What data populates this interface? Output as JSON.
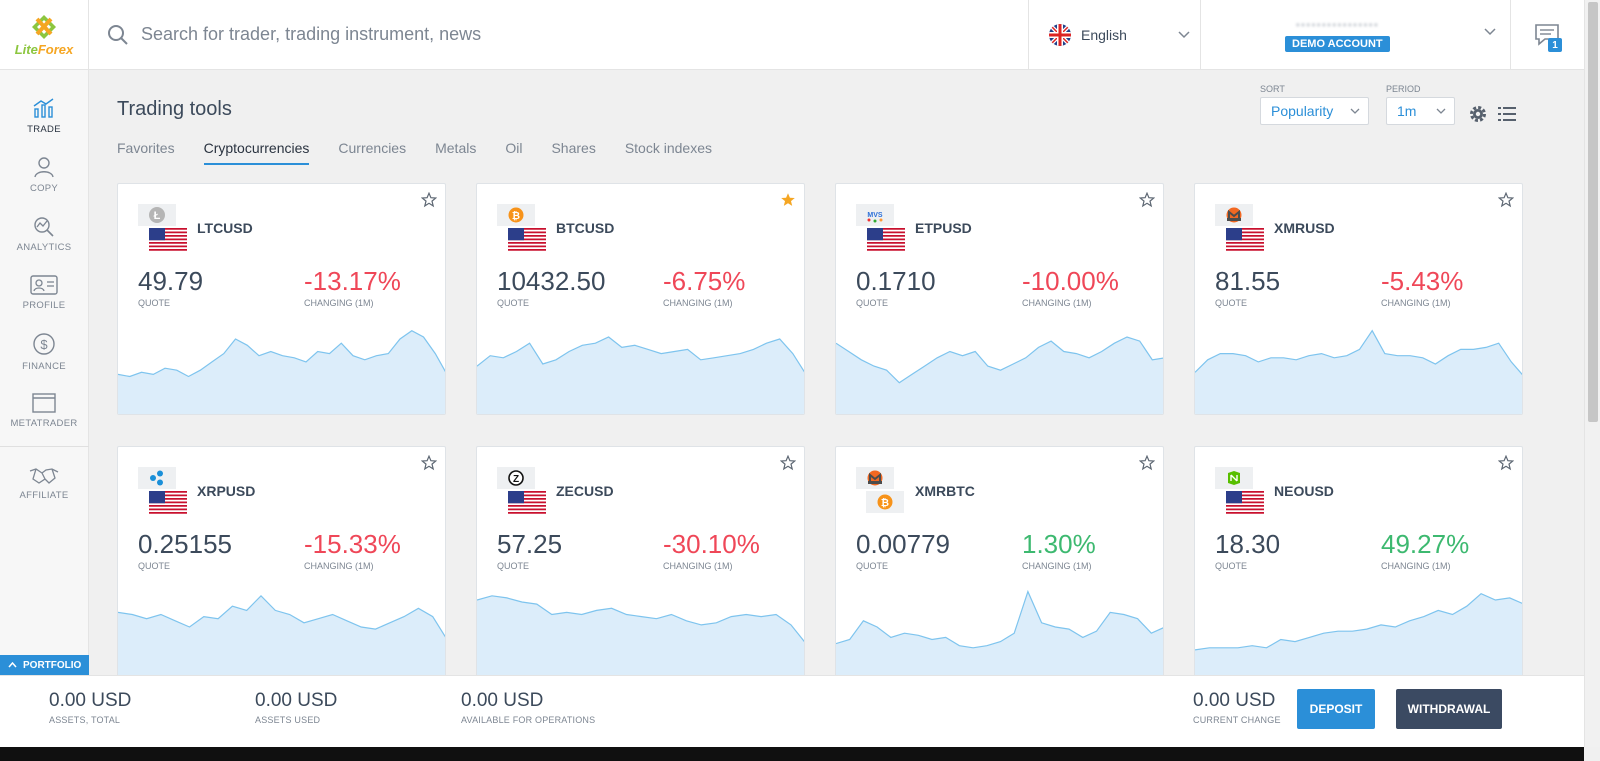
{
  "header": {
    "logo_lite": "Lite",
    "logo_forex": "Forex",
    "search_placeholder": "Search for trader, trading instrument, news",
    "language": "English",
    "account_name": "••••••••••••••••",
    "account_badge": "DEMO ACCOUNT",
    "messages_count": "1"
  },
  "sidebar": {
    "items": [
      {
        "label": "TRADE",
        "icon": "trade-icon"
      },
      {
        "label": "COPY",
        "icon": "copy-icon"
      },
      {
        "label": "ANALYTICS",
        "icon": "analytics-icon"
      },
      {
        "label": "PROFILE",
        "icon": "profile-icon"
      },
      {
        "label": "FINANCE",
        "icon": "finance-icon"
      },
      {
        "label": "METATRADER",
        "icon": "metatrader-icon"
      },
      {
        "label": "AFFILIATE",
        "icon": "affiliate-icon"
      }
    ],
    "portfolio_label": "PORTFOLIO"
  },
  "main": {
    "title": "Trading tools",
    "tabs": [
      "Favorites",
      "Cryptocurrencies",
      "Currencies",
      "Metals",
      "Oil",
      "Shares",
      "Stock indexes"
    ],
    "active_tab": "Cryptocurrencies",
    "sort_label": "SORT",
    "sort_value": "Popularity",
    "period_label": "PERIOD",
    "period_value": "1m"
  },
  "cards": [
    {
      "symbol": "LTCUSD",
      "quote": "49.79",
      "change": "-13.17%",
      "quote_label": "QUOTE",
      "change_label": "CHANGING (1M)",
      "favorite": false,
      "coin": "litecoin-icon",
      "spark": [
        40,
        38,
        42,
        40,
        46,
        44,
        38,
        44,
        52,
        60,
        74,
        68,
        58,
        62,
        58,
        56,
        52,
        62,
        60,
        70,
        58,
        54,
        58,
        60,
        74,
        82,
        76,
        60,
        40
      ]
    },
    {
      "symbol": "BTCUSD",
      "quote": "10432.50",
      "change": "-6.75%",
      "quote_label": "QUOTE",
      "change_label": "CHANGING (1M)",
      "favorite": true,
      "coin": "bitcoin-icon",
      "spark": [
        48,
        58,
        56,
        62,
        70,
        50,
        54,
        62,
        68,
        70,
        76,
        66,
        68,
        64,
        60,
        62,
        64,
        54,
        56,
        58,
        60,
        64,
        70,
        74,
        60,
        40
      ]
    },
    {
      "symbol": "ETPUSD",
      "quote": "0.1710",
      "change": "-10.00%",
      "quote_label": "QUOTE",
      "change_label": "CHANGING (1M)",
      "favorite": false,
      "coin": "metaverse-icon",
      "spark": [
        70,
        62,
        54,
        48,
        44,
        32,
        40,
        48,
        56,
        62,
        58,
        62,
        48,
        44,
        50,
        56,
        66,
        72,
        62,
        60,
        56,
        62,
        70,
        76,
        72,
        54,
        56
      ]
    },
    {
      "symbol": "XMRUSD",
      "quote": "81.55",
      "change": "-5.43%",
      "quote_label": "QUOTE",
      "change_label": "CHANGING (1M)",
      "favorite": false,
      "coin": "monero-icon",
      "spark": [
        42,
        54,
        60,
        60,
        58,
        52,
        56,
        56,
        54,
        58,
        60,
        56,
        58,
        64,
        82,
        60,
        58,
        58,
        56,
        50,
        58,
        64,
        64,
        66,
        70,
        52,
        38
      ]
    },
    {
      "symbol": "XRPUSD",
      "quote": "0.25155",
      "change": "-15.33%",
      "quote_label": "QUOTE",
      "change_label": "CHANGING (1M)",
      "favorite": false,
      "coin": "ripple-icon",
      "spark": [
        64,
        62,
        58,
        62,
        56,
        50,
        60,
        58,
        70,
        66,
        80,
        66,
        62,
        54,
        58,
        62,
        56,
        50,
        48,
        54,
        60,
        68,
        60,
        38
      ]
    },
    {
      "symbol": "ZECUSD",
      "quote": "57.25",
      "change": "-30.10%",
      "quote_label": "QUOTE",
      "change_label": "CHANGING (1M)",
      "favorite": false,
      "coin": "zcash-icon",
      "spark": [
        76,
        80,
        78,
        74,
        72,
        62,
        64,
        62,
        66,
        68,
        62,
        60,
        58,
        62,
        56,
        52,
        54,
        60,
        62,
        60,
        62,
        52,
        34
      ]
    },
    {
      "symbol": "XMRBTC",
      "quote": "0.00779",
      "change": "1.30%",
      "quote_label": "QUOTE",
      "change_label": "CHANGING (1M)",
      "favorite": false,
      "coin": "monero-icon",
      "coin2": "bitcoin-icon",
      "spark": [
        34,
        38,
        56,
        50,
        40,
        44,
        42,
        38,
        40,
        32,
        30,
        32,
        36,
        44,
        84,
        54,
        50,
        48,
        40,
        46,
        64,
        62,
        58,
        44,
        50
      ]
    },
    {
      "symbol": "NEOUSD",
      "quote": "18.30",
      "change": "49.27%",
      "quote_label": "QUOTE",
      "change_label": "CHANGING (1M)",
      "favorite": false,
      "coin": "neo-icon",
      "spark": [
        28,
        30,
        30,
        30,
        32,
        30,
        38,
        36,
        40,
        44,
        46,
        46,
        48,
        52,
        50,
        56,
        60,
        66,
        62,
        70,
        82,
        76,
        78,
        72
      ]
    }
  ],
  "footer": {
    "assets_total": "0.00 USD",
    "assets_total_label": "ASSETS, TOTAL",
    "assets_used": "0.00 USD",
    "assets_used_label": "ASSETS USED",
    "available": "0.00 USD",
    "available_label": "AVAILABLE FOR OPERATIONS",
    "current_change": "0.00 USD",
    "current_change_label": "CURRENT CHANGE",
    "deposit": "DEPOSIT",
    "withdrawal": "WITHDRAWAL"
  },
  "colors": {
    "accent": "#2b8fd8",
    "negative": "#ef4758",
    "positive": "#3db970",
    "spark_fill": "#dcedfa",
    "spark_line": "#7ec4ee",
    "star_active": "#f5a623"
  }
}
